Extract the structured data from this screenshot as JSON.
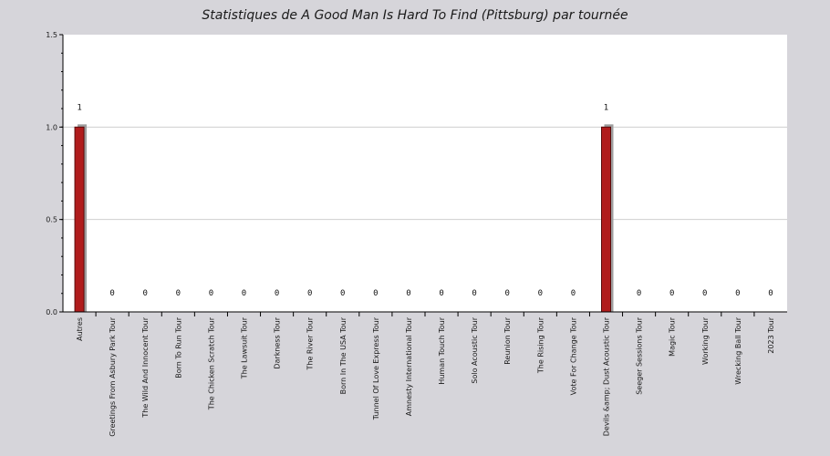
{
  "chart_data": {
    "type": "bar",
    "title": "Statistiques de A Good Man Is Hard To Find (Pittsburg) par tournée",
    "xlabel": "",
    "ylabel": "",
    "ylim": [
      0,
      1.5
    ],
    "yticks": [
      "0.0",
      "0.5",
      "1.0",
      "1.5"
    ],
    "grid": true,
    "legend": "none",
    "categories": [
      "Autres",
      "Greetings From Asbury Park Tour",
      "The Wild And Innocent Tour",
      "Born To Run Tour",
      "The Chicken Scratch Tour",
      "The Lawsuit Tour",
      "Darkness Tour",
      "The River Tour",
      "Born In The USA Tour",
      "Tunnel Of Love Express Tour",
      "Amnesty International Tour",
      "Human Touch Tour",
      "Solo Acoustic Tour",
      "Reunion Tour",
      "The Rising Tour",
      "Vote For Change Tour",
      "Devils &amp; Dust Acoustic Tour",
      "Seeger Sessions Tour",
      "Magic Tour",
      "Working Tour",
      "Wrecking Ball Tour",
      "2023 Tour"
    ],
    "values": [
      1,
      0,
      0,
      0,
      0,
      0,
      0,
      0,
      0,
      0,
      0,
      0,
      0,
      0,
      0,
      0,
      1,
      0,
      0,
      0,
      0,
      0
    ],
    "data_labels": [
      "1",
      "0",
      "0",
      "0",
      "0",
      "0",
      "0",
      "0",
      "0",
      "0",
      "0",
      "0",
      "0",
      "0",
      "0",
      "0",
      "1",
      "0",
      "0",
      "0",
      "0",
      "0"
    ],
    "colors": {
      "bar": "#b01c1c",
      "bar_edge": "#5a0c0c",
      "bar_shadow": "#9e9e9e",
      "plot_bg": "#ffffff",
      "page_bg": "#d6d5da",
      "grid": "#cfcfcf",
      "axis": "#000000"
    }
  }
}
